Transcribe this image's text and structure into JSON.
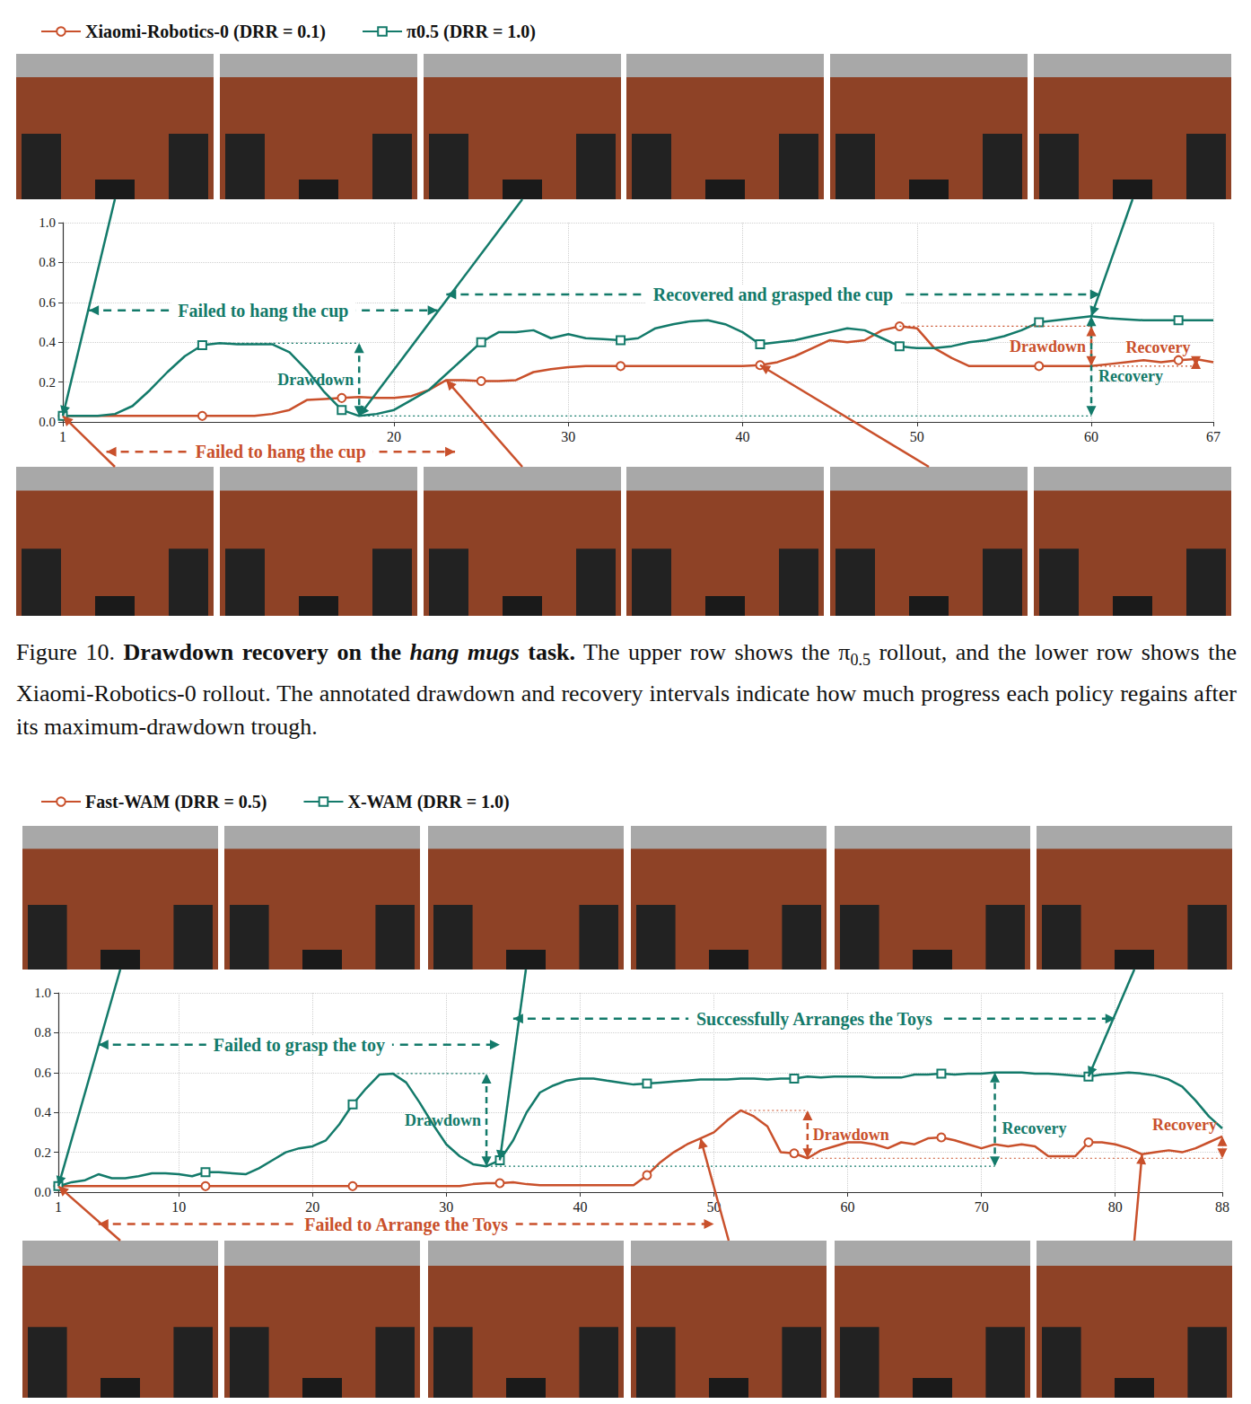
{
  "chart_data": [
    {
      "type": "line",
      "x": [
        1,
        2,
        3,
        4,
        5,
        6,
        7,
        8,
        9,
        10,
        11,
        12,
        13,
        14,
        15,
        16,
        17,
        18,
        19,
        20,
        21,
        22,
        23,
        24,
        25,
        26,
        27,
        28,
        29,
        30,
        31,
        32,
        33,
        34,
        35,
        36,
        37,
        38,
        39,
        40,
        41,
        42,
        43,
        44,
        45,
        46,
        47,
        48,
        49,
        50,
        51,
        52,
        53,
        54,
        55,
        56,
        57,
        58,
        59,
        60,
        61,
        62,
        63,
        64,
        65,
        66,
        67
      ],
      "xlim": [
        1,
        67
      ],
      "xticks": [
        1,
        20,
        30,
        40,
        50,
        60,
        67
      ],
      "ylim": [
        0,
        1
      ],
      "yticks": [
        {
          "value": 0,
          "label": "0.0"
        },
        0.2,
        0.4,
        0.6,
        0.8,
        {
          "value": 1,
          "label": "1.0"
        }
      ],
      "grid": true,
      "legend": "top left",
      "series": [
        {
          "name": "Xiaomi-Robotics-0 (DRR = 0.1)",
          "color": "#c9502b",
          "marker": "circle",
          "values": [
            0.03,
            0.03,
            0.03,
            0.03,
            0.03,
            0.03,
            0.03,
            0.03,
            0.03,
            0.03,
            0.03,
            0.03,
            0.04,
            0.06,
            0.11,
            0.115,
            0.12,
            0.125,
            0.12,
            0.12,
            0.13,
            0.16,
            0.21,
            0.21,
            0.205,
            0.205,
            0.21,
            0.25,
            0.265,
            0.275,
            0.28,
            0.28,
            0.28,
            0.28,
            0.28,
            0.28,
            0.28,
            0.28,
            0.28,
            0.28,
            0.285,
            0.3,
            0.33,
            0.37,
            0.41,
            0.4,
            0.41,
            0.46,
            0.48,
            0.47,
            0.37,
            0.32,
            0.28,
            0.28,
            0.28,
            0.28,
            0.28,
            0.28,
            0.28,
            0.28,
            0.29,
            0.3,
            0.31,
            0.3,
            0.31,
            0.315,
            0.3
          ],
          "frames": [
            1,
            null,
            23,
            null,
            41,
            null
          ],
          "drawdown": {
            "labels": [
              "Drawdown",
              "Recovery"
            ],
            "peak": [
              49,
              0.48
            ],
            "trough": [
              60,
              0.28
            ],
            "end": [
              66,
              0.315
            ]
          }
        },
        {
          "name": "π0.5 (DRR = 1.0)",
          "color": "#137a6a",
          "marker": "square",
          "values": [
            0.03,
            0.03,
            0.03,
            0.04,
            0.08,
            0.16,
            0.25,
            0.33,
            0.385,
            0.395,
            0.39,
            0.39,
            0.39,
            0.35,
            0.26,
            0.15,
            0.06,
            0.03,
            0.04,
            0.06,
            0.11,
            0.16,
            0.24,
            0.32,
            0.4,
            0.45,
            0.45,
            0.46,
            0.42,
            0.44,
            0.42,
            0.415,
            0.41,
            0.42,
            0.47,
            0.49,
            0.505,
            0.51,
            0.49,
            0.45,
            0.39,
            0.4,
            0.41,
            0.43,
            0.45,
            0.47,
            0.46,
            0.42,
            0.38,
            0.37,
            0.37,
            0.38,
            0.4,
            0.41,
            0.43,
            0.46,
            0.5,
            0.51,
            0.52,
            0.53,
            0.52,
            0.515,
            0.51,
            0.51,
            0.51,
            0.51,
            0.51
          ],
          "frames": [
            1,
            null,
            18,
            null,
            null,
            60
          ],
          "drawdown": {
            "labels": [
              "Drawdown",
              "Recovery"
            ],
            "peak": [
              10,
              0.395
            ],
            "trough": [
              18,
              0.03
            ],
            "end": [
              60,
              0.53
            ]
          }
        }
      ],
      "annotations": [
        {
          "text": "Failed to hang the cup",
          "color": "#137a6a",
          "x": [
            2.5,
            22.5
          ],
          "y": 0.56
        },
        {
          "text": "Recovered and grasped the cup",
          "color": "#137a6a",
          "x": [
            23,
            60.5
          ],
          "y": 0.64
        },
        {
          "text": "Failed to hang the cup",
          "color": "#c9502b",
          "x": [
            3.5,
            23.5
          ],
          "y": -0.15
        }
      ]
    },
    {
      "type": "line",
      "x": [
        1,
        2,
        3,
        4,
        5,
        6,
        7,
        8,
        9,
        10,
        11,
        12,
        13,
        14,
        15,
        16,
        17,
        18,
        19,
        20,
        21,
        22,
        23,
        24,
        25,
        26,
        27,
        28,
        29,
        30,
        31,
        32,
        33,
        34,
        35,
        36,
        37,
        38,
        39,
        40,
        41,
        42,
        43,
        44,
        45,
        46,
        47,
        48,
        49,
        50,
        51,
        52,
        53,
        54,
        55,
        56,
        57,
        58,
        59,
        60,
        61,
        62,
        63,
        64,
        65,
        66,
        67,
        68,
        69,
        70,
        71,
        72,
        73,
        74,
        75,
        76,
        77,
        78,
        79,
        80,
        81,
        82,
        83,
        84,
        85,
        86,
        87,
        88
      ],
      "xlim": [
        1,
        88
      ],
      "xticks": [
        1,
        10,
        20,
        30,
        40,
        50,
        60,
        70,
        80,
        88
      ],
      "ylim": [
        0,
        1
      ],
      "yticks": [
        {
          "value": 0,
          "label": "0.0"
        },
        0.2,
        0.4,
        0.6,
        0.8,
        {
          "value": 1,
          "label": "1.0"
        }
      ],
      "grid": true,
      "legend": "top left",
      "series": [
        {
          "name": "Fast-WAM (DRR = 0.5)",
          "color": "#c9502b",
          "marker": "circle",
          "values": [
            0.03,
            0.03,
            0.03,
            0.03,
            0.03,
            0.03,
            0.03,
            0.03,
            0.03,
            0.03,
            0.03,
            0.03,
            0.03,
            0.03,
            0.03,
            0.03,
            0.03,
            0.03,
            0.03,
            0.03,
            0.03,
            0.03,
            0.03,
            0.03,
            0.03,
            0.03,
            0.03,
            0.03,
            0.03,
            0.03,
            0.03,
            0.04,
            0.045,
            0.045,
            0.05,
            0.04,
            0.035,
            0.035,
            0.035,
            0.035,
            0.035,
            0.035,
            0.035,
            0.035,
            0.085,
            0.15,
            0.2,
            0.24,
            0.27,
            0.3,
            0.36,
            0.41,
            0.38,
            0.33,
            0.2,
            0.195,
            0.17,
            0.21,
            0.23,
            0.25,
            0.25,
            0.24,
            0.22,
            0.25,
            0.24,
            0.27,
            0.275,
            0.26,
            0.24,
            0.22,
            0.24,
            0.23,
            0.24,
            0.23,
            0.18,
            0.18,
            0.18,
            0.25,
            0.25,
            0.24,
            0.22,
            0.19,
            0.2,
            0.21,
            0.2,
            0.22,
            0.25,
            0.28
          ],
          "frames": [
            1,
            null,
            null,
            49,
            null,
            82
          ],
          "drawdown": {
            "labels": [
              "Drawdown",
              "Recovery"
            ],
            "peak": [
              52,
              0.41
            ],
            "trough": [
              57,
              0.17
            ],
            "end": [
              88,
              0.28
            ]
          }
        },
        {
          "name": "X-WAM (DRR = 1.0)",
          "color": "#137a6a",
          "marker": "square",
          "values": [
            0.03,
            0.05,
            0.06,
            0.09,
            0.07,
            0.07,
            0.08,
            0.095,
            0.095,
            0.09,
            0.08,
            0.1,
            0.1,
            0.095,
            0.09,
            0.12,
            0.16,
            0.2,
            0.22,
            0.23,
            0.26,
            0.34,
            0.44,
            0.52,
            0.59,
            0.595,
            0.55,
            0.45,
            0.34,
            0.24,
            0.18,
            0.14,
            0.13,
            0.16,
            0.26,
            0.4,
            0.5,
            0.535,
            0.56,
            0.57,
            0.57,
            0.56,
            0.55,
            0.54,
            0.545,
            0.55,
            0.555,
            0.56,
            0.565,
            0.565,
            0.565,
            0.57,
            0.57,
            0.565,
            0.57,
            0.57,
            0.58,
            0.575,
            0.58,
            0.58,
            0.58,
            0.575,
            0.575,
            0.575,
            0.59,
            0.59,
            0.595,
            0.59,
            0.595,
            0.595,
            0.6,
            0.6,
            0.6,
            0.595,
            0.595,
            0.59,
            0.585,
            0.58,
            0.59,
            0.595,
            0.6,
            0.595,
            0.585,
            0.565,
            0.53,
            0.46,
            0.38,
            0.32
          ],
          "frames": [
            1,
            null,
            34,
            null,
            null,
            78
          ],
          "drawdown": {
            "labels": [
              "Drawdown",
              "Recovery"
            ],
            "peak": [
              26,
              0.595
            ],
            "trough": [
              33,
              0.13
            ],
            "end": [
              71,
              0.6
            ]
          }
        }
      ],
      "annotations": [
        {
          "text": "Failed to grasp the toy",
          "color": "#137a6a",
          "x": [
            4,
            34
          ],
          "y": 0.74
        },
        {
          "text": "Successfully Arranges the Toys",
          "color": "#137a6a",
          "x": [
            35,
            80
          ],
          "y": 0.87
        },
        {
          "text": "Failed to Arrange the Toys",
          "color": "#c9502b",
          "x": [
            4,
            50
          ],
          "y": -0.16
        }
      ]
    }
  ],
  "caption": [
    {
      "text": "Figure 10. ",
      "style": "normal"
    },
    {
      "text": "Drawdown recovery on the ",
      "style": "bold"
    },
    {
      "text": "hang mugs",
      "style": "bold italic"
    },
    {
      "text": " task.",
      "style": "bold"
    },
    {
      "text": " The upper row shows the π",
      "style": "normal"
    },
    {
      "text": "0.5",
      "style": "sub"
    },
    {
      "text": " rollout, and the lower row shows the Xiaomi-Robotics-0 rollout. The annotated drawdown and recovery intervals indicate how much progress each policy regains after its maximum-drawdown trough.",
      "style": "normal"
    }
  ]
}
